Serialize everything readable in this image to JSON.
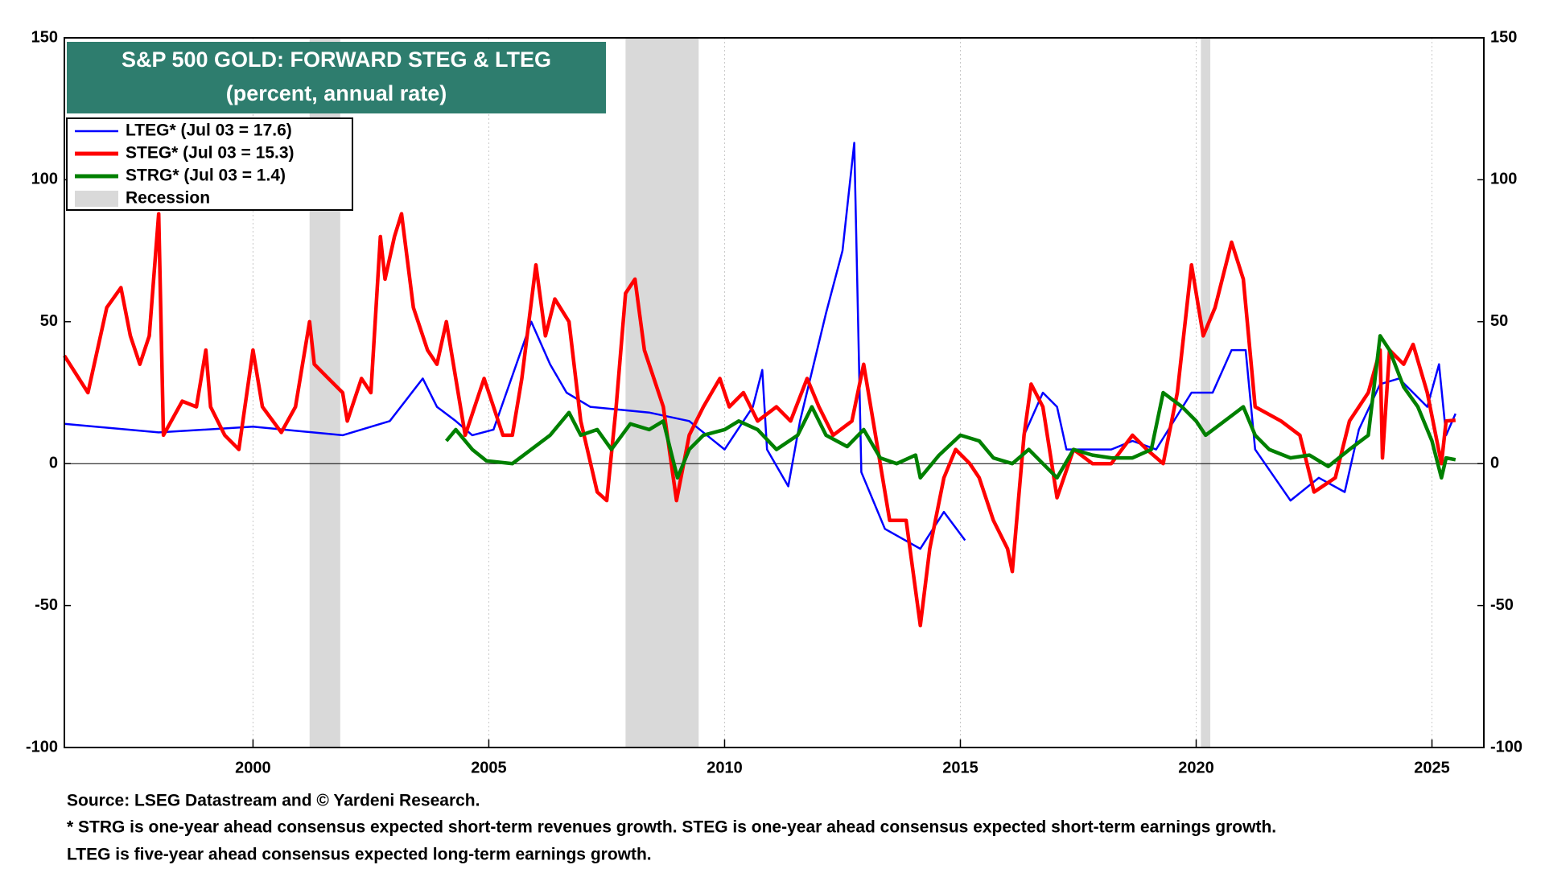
{
  "chart_data": {
    "type": "line",
    "title": "S&P 500 GOLD: FORWARD STEG & LTEG",
    "subtitle": "(percent, annual rate)",
    "xlim": [
      1996,
      2026.1
    ],
    "xticks": [
      2000,
      2005,
      2010,
      2015,
      2020,
      2025
    ],
    "ylim": [
      -100,
      150
    ],
    "yticks": [
      -100,
      -50,
      0,
      50,
      100,
      150
    ],
    "grid": true,
    "legend": "upper left",
    "recession_label": "Recession",
    "recession_color": "#d9d9d9",
    "recessions": [
      [
        2001.2,
        2001.85
      ],
      [
        2007.9,
        2009.45
      ],
      [
        2020.1,
        2020.3
      ]
    ],
    "series": [
      {
        "name": "LTEG* (Jul 03 = 17.6)",
        "color": "#0000ff",
        "x": [
          1996.0,
          1998.0,
          2000.0,
          2001.9,
          2002.9,
          2003.6,
          2003.9,
          2004.3,
          2004.65,
          2005.1,
          2005.9,
          2006.3,
          2006.65,
          2007.15,
          2008.4,
          2009.25,
          2010.0,
          2010.6,
          2010.8,
          2010.9,
          2011.35,
          2011.6,
          2012.15,
          2012.5,
          2012.75,
          2012.9,
          2013.4,
          2014.15,
          2014.65,
          2015.1,
          2015.6,
          2016.35,
          2016.75,
          2017.05,
          2017.25,
          2018.2,
          2018.65,
          2019.15,
          2019.9,
          2020.35,
          2020.75,
          2021.05,
          2021.25,
          2022.0,
          2022.6,
          2023.15,
          2023.45,
          2023.9,
          2024.3,
          2024.9,
          2025.15,
          2025.3,
          2025.5
        ],
        "values": [
          14,
          11,
          13,
          10,
          15,
          30,
          20,
          15,
          10,
          12,
          50,
          35,
          25,
          20,
          18,
          15,
          5,
          20,
          33,
          5,
          -8,
          15,
          53,
          75,
          113,
          -3,
          -23,
          -30,
          -17,
          -27,
          null,
          10,
          25,
          20,
          5,
          5,
          8,
          5,
          25,
          25,
          40,
          40,
          5,
          -13,
          -5,
          -10,
          12,
          28,
          30,
          20,
          35,
          10,
          17.6
        ]
      },
      {
        "name": "STEG* (Jul 03 = 15.3)",
        "color": "#ff0000",
        "x": [
          1996.0,
          1996.5,
          1996.9,
          1997.2,
          1997.4,
          1997.6,
          1997.8,
          1998.0,
          1998.1,
          1998.5,
          1998.8,
          1999.0,
          1999.1,
          1999.4,
          1999.7,
          2000.0,
          2000.2,
          2000.6,
          2000.9,
          2001.2,
          2001.3,
          2001.6,
          2001.9,
          2002.0,
          2002.3,
          2002.5,
          2002.7,
          2002.8,
          2003.0,
          2003.15,
          2003.4,
          2003.7,
          2003.9,
          2004.1,
          2004.3,
          2004.5,
          2004.9,
          2005.1,
          2005.3,
          2005.5,
          2005.7,
          2006.0,
          2006.2,
          2006.4,
          2006.7,
          2006.95,
          2007.3,
          2007.5,
          2007.7,
          2007.9,
          2008.1,
          2008.3,
          2008.5,
          2008.7,
          2008.98,
          2009.25,
          2009.55,
          2009.9,
          2010.1,
          2010.4,
          2010.7,
          2011.1,
          2011.4,
          2011.75,
          2012.0,
          2012.3,
          2012.7,
          2012.95,
          2013.2,
          2013.5,
          2013.85,
          2014.15,
          2014.35,
          2014.65,
          2014.9,
          2015.2,
          2015.4,
          2015.7,
          2016.0,
          2016.1,
          2016.35,
          2016.5,
          2016.75,
          2017.05,
          2017.4,
          2017.8,
          2018.2,
          2018.65,
          2018.95,
          2019.3,
          2019.6,
          2019.9,
          2020.15,
          2020.4,
          2020.75,
          2021.0,
          2021.25,
          2021.8,
          2022.2,
          2022.5,
          2022.95,
          2023.25,
          2023.65,
          2023.9,
          2023.95,
          2024.1,
          2024.4,
          2024.6,
          2024.9,
          2025.2,
          2025.3,
          2025.5
        ],
        "values": [
          38,
          25,
          55,
          62,
          45,
          35,
          45,
          88,
          10,
          22,
          20,
          40,
          20,
          10,
          5,
          40,
          20,
          11,
          20,
          50,
          35,
          30,
          25,
          15,
          30,
          25,
          80,
          65,
          80,
          88,
          55,
          40,
          35,
          50,
          30,
          10,
          30,
          20,
          10,
          10,
          30,
          70,
          45,
          58,
          50,
          15,
          -10,
          -13,
          20,
          60,
          65,
          40,
          30,
          20,
          -13,
          10,
          20,
          30,
          20,
          25,
          15,
          20,
          15,
          30,
          20,
          10,
          15,
          35,
          10,
          -20,
          -20,
          -57,
          -30,
          -5,
          5,
          0,
          -5,
          -20,
          -30,
          -38,
          10,
          28,
          20,
          -12,
          5,
          0,
          0,
          10,
          5,
          0,
          25,
          70,
          45,
          55,
          78,
          65,
          20,
          15,
          10,
          -10,
          -5,
          15,
          25,
          40,
          2,
          40,
          35,
          42,
          25,
          0,
          15,
          15.3
        ]
      },
      {
        "name": "STRG* (Jul 03 = 1.4)",
        "color": "#008000",
        "x": [
          2004.1,
          2004.3,
          2004.65,
          2004.95,
          2005.5,
          2005.9,
          2006.3,
          2006.7,
          2006.95,
          2007.3,
          2007.6,
          2008.0,
          2008.4,
          2008.7,
          2009.0,
          2009.25,
          2009.55,
          2010.0,
          2010.3,
          2010.7,
          2011.1,
          2011.55,
          2011.85,
          2012.15,
          2012.6,
          2012.95,
          2013.3,
          2013.65,
          2014.05,
          2014.15,
          2014.55,
          2015.0,
          2015.4,
          2015.7,
          2016.1,
          2016.45,
          2016.75,
          2017.05,
          2017.4,
          2017.8,
          2018.2,
          2018.65,
          2019.05,
          2019.3,
          2019.7,
          2020.0,
          2020.2,
          2020.6,
          2021.0,
          2021.25,
          2021.55,
          2022.0,
          2022.4,
          2022.8,
          2023.25,
          2023.65,
          2023.9,
          2024.1,
          2024.4,
          2024.7,
          2025.0,
          2025.2,
          2025.3,
          2025.5
        ],
        "values": [
          8,
          12,
          5,
          1,
          0,
          5,
          10,
          18,
          10,
          12,
          5,
          14,
          12,
          15,
          -5,
          5,
          10,
          12,
          15,
          12,
          5,
          10,
          20,
          10,
          6,
          12,
          2,
          0,
          3,
          -5,
          3,
          10,
          8,
          2,
          0,
          5,
          0,
          -5,
          5,
          3,
          2,
          2,
          5,
          25,
          20,
          15,
          10,
          15,
          20,
          10,
          5,
          2,
          3,
          -1,
          5,
          10,
          45,
          40,
          27,
          20,
          8,
          -5,
          2,
          1.4
        ]
      }
    ],
    "source": "Source: LSEG Datastream and © Yardeni Research.",
    "notes": [
      "* STRG is one-year ahead consensus expected short-term revenues growth. STEG is one-year ahead consensus expected short-term earnings growth.",
      "LTEG is five-year ahead consensus expected long-term earnings growth."
    ]
  }
}
